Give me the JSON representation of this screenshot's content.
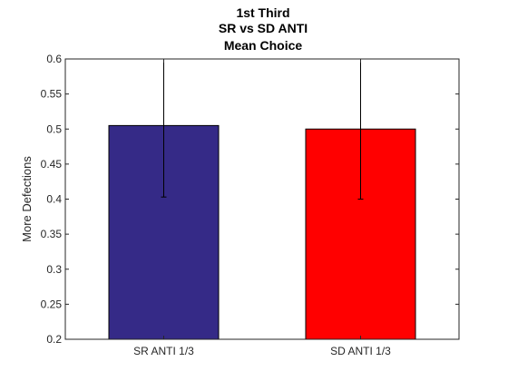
{
  "chart_data": {
    "type": "bar",
    "title": [
      "1st Third",
      "SR vs SD ANTI",
      "Mean Choice"
    ],
    "xlabel": "",
    "ylabel": "More Defections",
    "categories": [
      "SR ANTI 1/3",
      "SD ANTI 1/3"
    ],
    "values": [
      0.505,
      0.5
    ],
    "error_low": [
      0.403,
      0.4
    ],
    "error_high": [
      0.6,
      0.6
    ],
    "ylim": [
      0.2,
      0.6
    ],
    "yticks": [
      "0.2",
      "0.25",
      "0.3",
      "0.35",
      "0.4",
      "0.45",
      "0.5",
      "0.55",
      "0.6"
    ],
    "bar_colors": [
      "#352a87",
      "#ff0000"
    ],
    "grid": false
  }
}
